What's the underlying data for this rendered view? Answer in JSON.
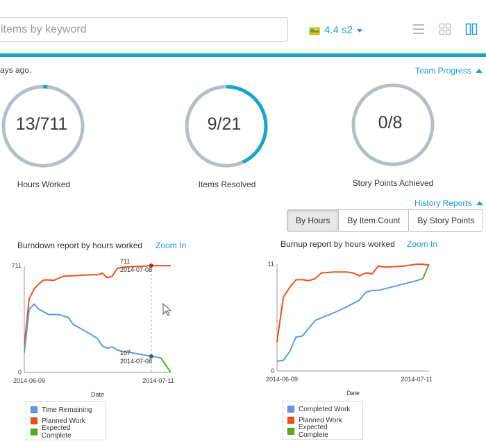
{
  "search": {
    "placeholder": "items by keyword"
  },
  "release": {
    "label": "4.4 s2"
  },
  "status_text": "ays ago.",
  "team_progress_link": "Team Progress",
  "history_reports_link": "History Reports",
  "metrics": [
    {
      "value": "13/711",
      "label": "Hours Worked",
      "fraction": 0.018
    },
    {
      "value": "9/21",
      "label": "Items Resolved",
      "fraction": 0.43
    },
    {
      "value": "0/8",
      "label": "Story Points Achieved",
      "fraction": 0
    }
  ],
  "toggle": {
    "by_hours": "By Hours",
    "by_item_count": "By Item Count",
    "by_story_points": "By Story Points",
    "active": "By Hours"
  },
  "zoom_label": "Zoom In",
  "colors": {
    "accent": "#16a6c9",
    "link": "#1a9fc9",
    "ring_track": "#b5bec6",
    "time_remaining": "#5b9be0",
    "planned_work": "#f0501a",
    "expected_complete": "#5aaa1e",
    "completed_work": "#5b9be0"
  },
  "chart_data": [
    {
      "type": "line",
      "title": "Burndown report by hours worked",
      "xlabel": "Date",
      "x_ticks": [
        "2014-06-09",
        "2014-07-11"
      ],
      "y_ticks": [
        "0",
        "711"
      ],
      "ylim": [
        0,
        711
      ],
      "legend_position": "bottom",
      "series": [
        {
          "name": "Time Remaining",
          "color": "#5b9be0",
          "points": [
            [
              0,
              130
            ],
            [
              1,
              420
            ],
            [
              2,
              455
            ],
            [
              3,
              420
            ],
            [
              5,
              385
            ],
            [
              7,
              385
            ],
            [
              9,
              365
            ],
            [
              10,
              320
            ],
            [
              13,
              265
            ],
            [
              15,
              225
            ],
            [
              16,
              175
            ],
            [
              17,
              160
            ],
            [
              18,
              170
            ],
            [
              19,
              150
            ],
            [
              20,
              138
            ],
            [
              21,
              136
            ],
            [
              26,
              107
            ],
            [
              27,
              103
            ],
            [
              28,
              95
            ]
          ]
        },
        {
          "name": "Planned Work",
          "color": "#f0501a",
          "points": [
            [
              0,
              180
            ],
            [
              1,
              490
            ],
            [
              2,
              555
            ],
            [
              3,
              590
            ],
            [
              4,
              615
            ],
            [
              5,
              615
            ],
            [
              6,
              612
            ],
            [
              7,
              625
            ],
            [
              8,
              640
            ],
            [
              11,
              645
            ],
            [
              14,
              650
            ],
            [
              15,
              650
            ],
            [
              16,
              660
            ],
            [
              17,
              630
            ],
            [
              18,
              640
            ],
            [
              19,
              690
            ],
            [
              20,
              700
            ],
            [
              23,
              705
            ],
            [
              25,
              708
            ],
            [
              26,
              711
            ],
            [
              30,
              710
            ]
          ]
        },
        {
          "name": "Expected Complete",
          "color": "#5aaa1e",
          "points": [
            [
              28,
              95
            ],
            [
              30,
              0
            ]
          ]
        }
      ],
      "annotations": [
        {
          "value": "711",
          "date": "2014-07-08"
        },
        {
          "value": "107",
          "date": "2014-07-08"
        }
      ]
    },
    {
      "type": "line",
      "title": "Burnup report by hours worked",
      "xlabel": "Date",
      "x_ticks": [
        "2014-06-09",
        "2014-07-11"
      ],
      "y_ticks": [
        "0",
        "11"
      ],
      "ylim": [
        0,
        11
      ],
      "legend_position": "bottom",
      "series": [
        {
          "name": "Completed Work",
          "color": "#5b9be0",
          "points": [
            [
              0,
              1.0
            ],
            [
              1,
              1.1
            ],
            [
              2,
              2.0
            ],
            [
              3,
              3.5
            ],
            [
              4,
              3.6
            ],
            [
              6,
              5.2
            ],
            [
              9,
              6.0
            ],
            [
              11,
              6.6
            ],
            [
              13,
              7.3
            ],
            [
              14,
              8.1
            ],
            [
              15,
              8.3
            ],
            [
              16,
              8.3
            ],
            [
              22,
              9.3
            ],
            [
              23,
              9.5
            ]
          ]
        },
        {
          "name": "Planned Work",
          "color": "#f0501a",
          "points": [
            [
              0,
              3.0
            ],
            [
              1,
              7.6
            ],
            [
              2,
              8.6
            ],
            [
              3,
              9.4
            ],
            [
              4,
              9.4
            ],
            [
              5,
              9.3
            ],
            [
              6,
              9.5
            ],
            [
              7,
              10.1
            ],
            [
              9,
              10.2
            ],
            [
              11,
              10.2
            ],
            [
              12,
              10.1
            ],
            [
              13,
              9.8
            ],
            [
              14,
              10.1
            ],
            [
              15,
              10.0
            ],
            [
              16,
              10.8
            ],
            [
              17,
              10.7
            ],
            [
              20,
              10.8
            ],
            [
              22,
              11.0
            ],
            [
              23,
              11.0
            ],
            [
              24,
              10.9
            ]
          ]
        },
        {
          "name": "Expected Complete",
          "color": "#5aaa1e",
          "points": [
            [
              23,
              9.5
            ],
            [
              24,
              11.0
            ]
          ]
        }
      ]
    }
  ]
}
